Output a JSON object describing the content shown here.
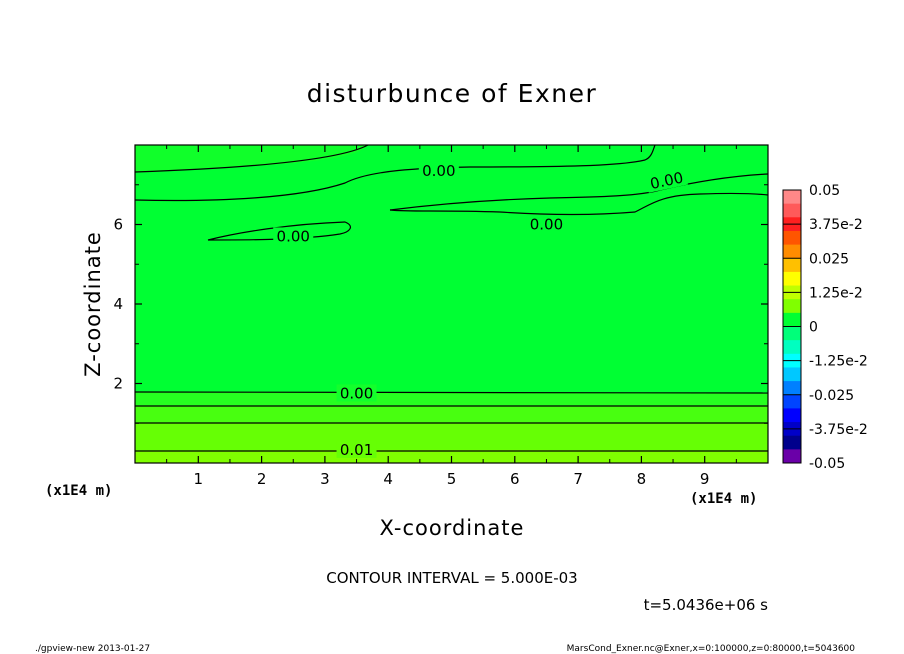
{
  "chart_data": {
    "type": "heatmap",
    "title": "disturbunce of Exner",
    "xlabel": "X-coordinate",
    "ylabel": "Z-coordinate",
    "x_unit": "(x1E4 m)",
    "y_unit": "(x1E4 m)",
    "xlim": [
      0,
      10
    ],
    "ylim": [
      0,
      8
    ],
    "x_ticks": [
      1,
      2,
      3,
      4,
      5,
      6,
      7,
      8,
      9
    ],
    "y_ticks": [
      2,
      4,
      6
    ],
    "colorbar": {
      "range": [
        -0.05,
        0.05
      ],
      "tick_labels": [
        "0.05",
        "3.75e-2",
        "0.025",
        "1.25e-2",
        "0",
        "-1.25e-2",
        "-0.025",
        "-3.75e-2",
        "-0.05"
      ],
      "colors": [
        "#ff8888",
        "#ff5a5a",
        "#ff2020",
        "#ff5500",
        "#ff8c00",
        "#ffc000",
        "#ffff00",
        "#c0ff00",
        "#80ff00",
        "#00ff33",
        "#00ff7a",
        "#00ffc0",
        "#00ffff",
        "#00c8ff",
        "#0080ff",
        "#0044ff",
        "#0000ff",
        "#0000c8",
        "#00008c",
        "#6a00a8"
      ]
    },
    "contour_labels": [
      {
        "text": "0.00",
        "x": 4.8,
        "z": 7.35
      },
      {
        "text": "0.00",
        "x": 8.4,
        "z": 7.1
      },
      {
        "text": "0.00",
        "x": 6.5,
        "z": 6.0
      },
      {
        "text": "0.00",
        "x": 2.5,
        "z": 5.7
      },
      {
        "text": "0.00",
        "x": 3.5,
        "z": 1.75
      },
      {
        "text": "0.01",
        "x": 3.5,
        "z": 0.33
      }
    ],
    "contour_interval": "CONTOUR INTERVAL = 5.000E-03",
    "time": "t=5.0436e+06 s"
  },
  "footer": {
    "left": "./gpview-new   2013-01-27",
    "right": "MarsCond_Exner.nc@Exner,x=0:100000,z=0:80000,t=5043600"
  }
}
